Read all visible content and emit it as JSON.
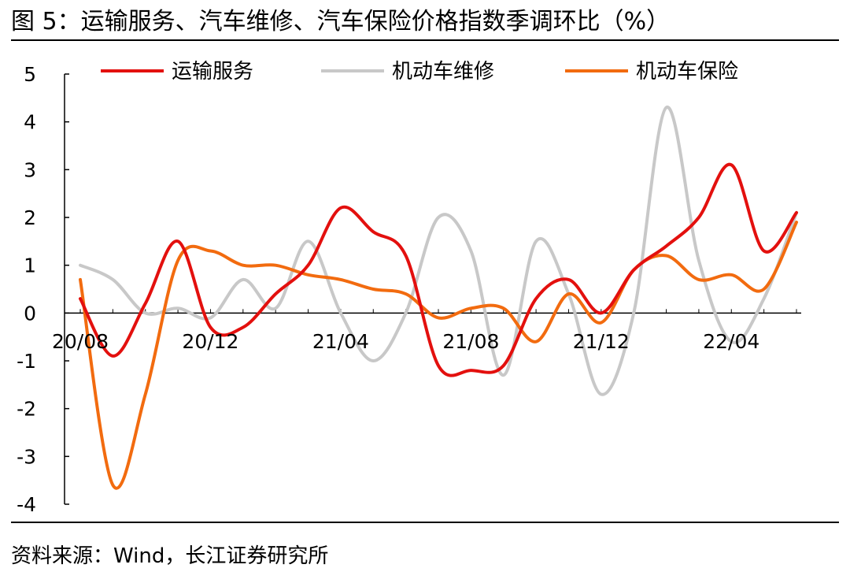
{
  "figure": {
    "title": "图 5：运输服务、汽车维修、汽车保险价格指数季调环比（%）",
    "source": "资料来源：Wind，长江证券研究所"
  },
  "chart_data": {
    "type": "line",
    "title": "",
    "xlabel": "",
    "ylabel": "",
    "ylim": [
      -4,
      5
    ],
    "yticks": [
      "5",
      "4",
      "3",
      "2",
      "1",
      "0",
      "-1",
      "-2",
      "-3",
      "-4"
    ],
    "x_tick_labels": [
      "20/08",
      "20/12",
      "21/04",
      "21/08",
      "21/12",
      "22/04"
    ],
    "legend_position": "top",
    "grid": false,
    "x": [
      "20/08",
      "20/09",
      "20/10",
      "20/11",
      "20/12",
      "21/01",
      "21/02",
      "21/03",
      "21/04",
      "21/05",
      "21/06",
      "21/07",
      "21/08",
      "21/09",
      "21/10",
      "21/11",
      "21/12",
      "22/01",
      "22/02",
      "22/03",
      "22/04",
      "22/05",
      "22/06"
    ],
    "series": [
      {
        "name": "运输服务",
        "color": "#e3100e",
        "values": [
          0.3,
          -0.9,
          0.2,
          1.5,
          -0.3,
          -0.3,
          0.4,
          1.0,
          2.2,
          1.7,
          1.2,
          -1.1,
          -1.2,
          -1.1,
          0.3,
          0.7,
          0.0,
          0.9,
          1.4,
          2.0,
          3.1,
          1.3,
          2.1
        ]
      },
      {
        "name": "机动车维修",
        "color": "#c8c8c8",
        "values": [
          1.0,
          0.7,
          0.0,
          0.1,
          -0.1,
          0.7,
          0.1,
          1.5,
          0.0,
          -1.0,
          0.0,
          2.0,
          1.3,
          -1.3,
          1.5,
          0.4,
          -1.7,
          0.0,
          4.3,
          1.1,
          -0.6,
          0.3,
          2.1
        ]
      },
      {
        "name": "机动车保险",
        "color": "#f26b0f",
        "values": [
          0.7,
          -3.6,
          -1.7,
          1.1,
          1.3,
          1.0,
          1.0,
          0.8,
          0.7,
          0.5,
          0.4,
          -0.1,
          0.1,
          0.1,
          -0.6,
          0.4,
          -0.2,
          0.9,
          1.2,
          0.7,
          0.8,
          0.5,
          1.9
        ]
      }
    ]
  }
}
